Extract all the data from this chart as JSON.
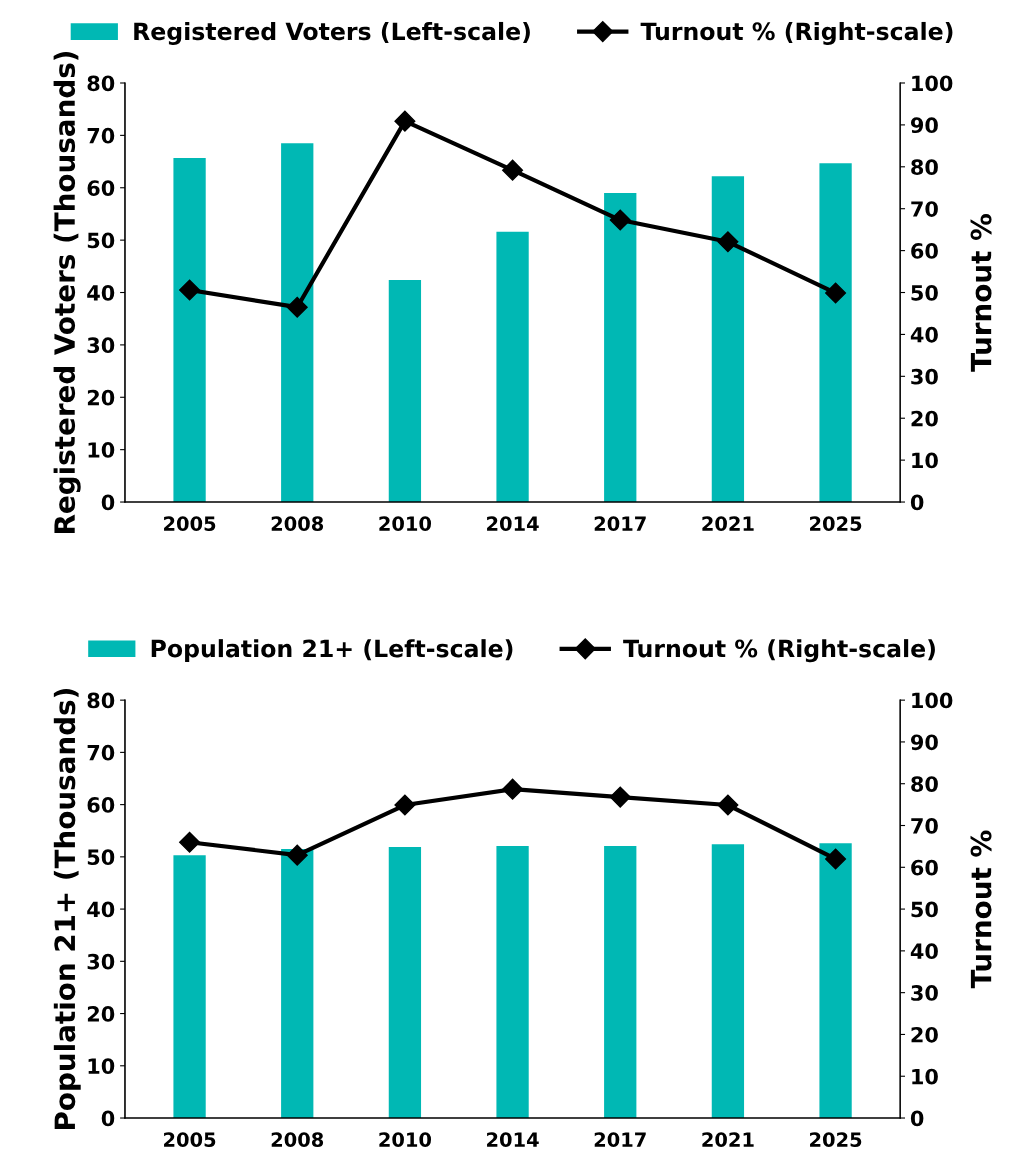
{
  "chart_data": [
    {
      "type": "bar",
      "categories": [
        "2005",
        "2008",
        "2010",
        "2014",
        "2017",
        "2021",
        "2025"
      ],
      "ylabel": "Registered Voters (Thousands)",
      "y2label": "Turnout %",
      "ylim": [
        0,
        80
      ],
      "yticks": [
        0,
        10,
        20,
        30,
        40,
        50,
        60,
        70,
        80
      ],
      "y2lim": [
        0,
        100
      ],
      "y2ticks": [
        0,
        10,
        20,
        30,
        40,
        50,
        60,
        70,
        80,
        90,
        100
      ],
      "legend": "top",
      "grid": false,
      "series": [
        {
          "name": "Registered Voters (Left-scale)",
          "color": "#00b8b4",
          "values": [
            65.7,
            68.5,
            42.4,
            51.6,
            59.0,
            62.2,
            64.7
          ]
        },
        {
          "name": "Turnout % (Right-scale)",
          "type": "line",
          "axis": "y2",
          "color": "#000000",
          "marker": "diamond",
          "line_style": "solid",
          "values": [
            50.6,
            46.5,
            90.9,
            79.2,
            67.3,
            62.1,
            49.9
          ]
        }
      ]
    },
    {
      "type": "bar",
      "categories": [
        "2005",
        "2008",
        "2010",
        "2014",
        "2017",
        "2021",
        "2025"
      ],
      "ylabel": "Population 21+ (Thousands)",
      "y2label": "Turnout %",
      "ylim": [
        0,
        80
      ],
      "yticks": [
        0,
        10,
        20,
        30,
        40,
        50,
        60,
        70,
        80
      ],
      "y2lim": [
        0,
        100
      ],
      "y2ticks": [
        0,
        10,
        20,
        30,
        40,
        50,
        60,
        70,
        80,
        90,
        100
      ],
      "legend": "top",
      "grid": false,
      "series": [
        {
          "name": "Population 21+ (Left-scale)",
          "color": "#00b8b4",
          "values": [
            50.3,
            51.5,
            51.9,
            52.1,
            52.1,
            52.4,
            52.6
          ]
        },
        {
          "name": "Turnout % (Right-scale)",
          "type": "line",
          "axis": "y2",
          "color": "#000000",
          "marker": "diamond",
          "line_style": "solid",
          "values": [
            66.0,
            62.9,
            74.9,
            78.7,
            76.8,
            74.9,
            62.0
          ]
        }
      ]
    }
  ]
}
